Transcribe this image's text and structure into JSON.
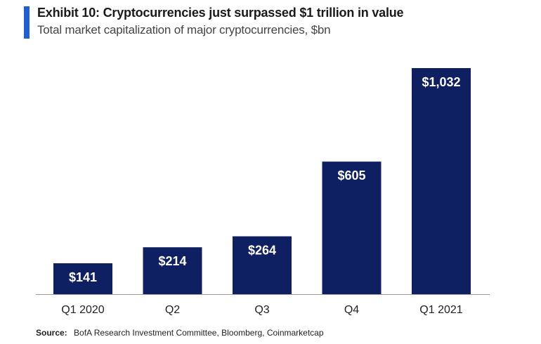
{
  "header": {
    "title": "Exhibit 10: Cryptocurrencies just surpassed $1 trillion in value",
    "subtitle": "Total market capitalization of major cryptocurrencies, $bn"
  },
  "footer": {
    "source_label": "Source:",
    "source_text": "BofA Research Investment Committee, Bloomberg, Coinmarketcap"
  },
  "colors": {
    "bar": "#0e1f62",
    "accent": "#1f5fd1",
    "label": "#ffffff",
    "axis": "#222222"
  },
  "chart_data": {
    "type": "bar",
    "categories": [
      "Q1 2020",
      "Q2",
      "Q3",
      "Q4",
      "Q1 2021"
    ],
    "values": [
      141,
      214,
      264,
      605,
      1032
    ],
    "value_labels": [
      "$141",
      "$214",
      "$264",
      "$605",
      "$1,032"
    ],
    "title": "Exhibit 10: Cryptocurrencies just surpassed $1 trillion in value",
    "subtitle": "Total market capitalization of major cryptocurrencies, $bn",
    "xlabel": "",
    "ylabel": "",
    "ylim": [
      0,
      1032
    ],
    "grid": false,
    "legend": "none"
  }
}
